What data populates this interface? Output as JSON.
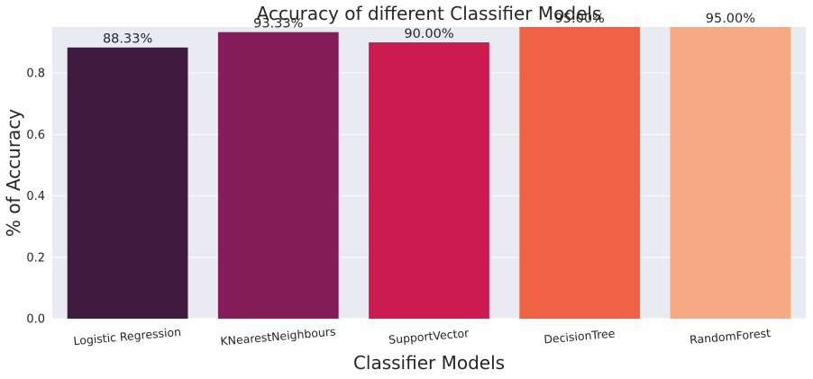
{
  "chart_data": {
    "type": "bar",
    "title": "Accuracy of different Classifier Models",
    "xlabel": "Classifier Models",
    "ylabel": "% of Accuracy",
    "categories": [
      "Logistic Regression",
      "KNearestNeighbours",
      "SupportVector",
      "DecisionTree",
      "RandomForest"
    ],
    "values": [
      0.8833,
      0.9333,
      0.9,
      0.95,
      0.95
    ],
    "data_labels": [
      "88.33%",
      "93.33%",
      "90.00%",
      "95.00%",
      "95.00%"
    ],
    "colors": [
      "#411a40",
      "#841d5a",
      "#cb1b4f",
      "#ef6244",
      "#f6a982"
    ],
    "ylim": [
      0,
      0.95
    ],
    "yticks": [
      0.0,
      0.2,
      0.4,
      0.6,
      0.8
    ],
    "ytick_labels": [
      "0.0",
      "0.2",
      "0.4",
      "0.6",
      "0.8"
    ],
    "grid": true,
    "background": "#eaeaf2"
  }
}
